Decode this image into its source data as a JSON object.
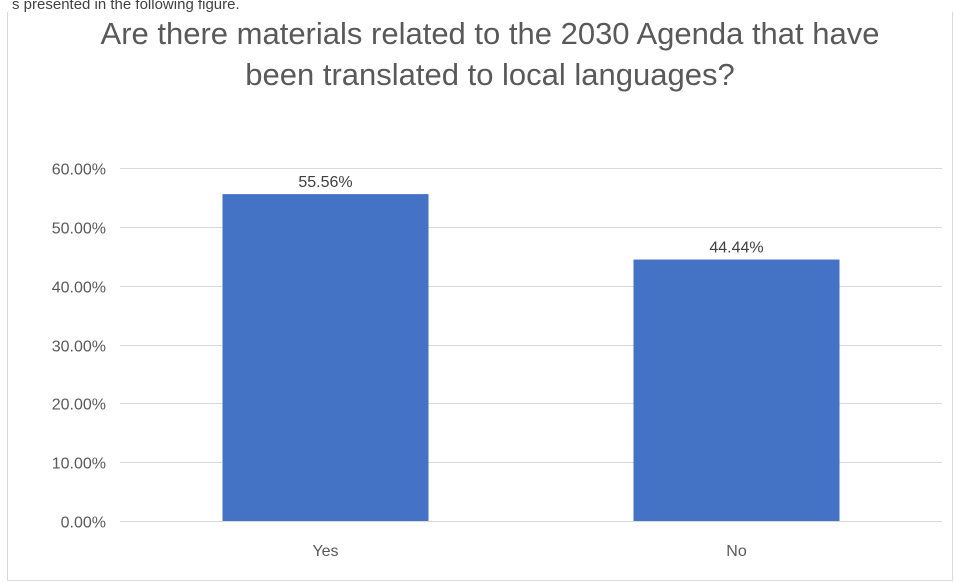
{
  "page": {
    "caption_fragment": "s presented in the following figure."
  },
  "chart_data": {
    "type": "bar",
    "title": "Are there materials related to the 2030 Agenda that have been translated to local languages?",
    "categories": [
      "Yes",
      "No"
    ],
    "values": [
      55.56,
      44.44
    ],
    "data_labels": [
      "55.56%",
      "44.44%"
    ],
    "ylim": [
      0,
      60
    ],
    "yticks": [
      0,
      10,
      20,
      30,
      40,
      50,
      60
    ],
    "ytick_labels": [
      "0.00%",
      "10.00%",
      "20.00%",
      "30.00%",
      "40.00%",
      "50.00%",
      "60.00%"
    ],
    "xlabel": "",
    "ylabel": "",
    "grid": true,
    "legend": "none",
    "bar_color": "#4472C4",
    "grid_color": "#d9d9d9",
    "text_color": "#595959"
  }
}
